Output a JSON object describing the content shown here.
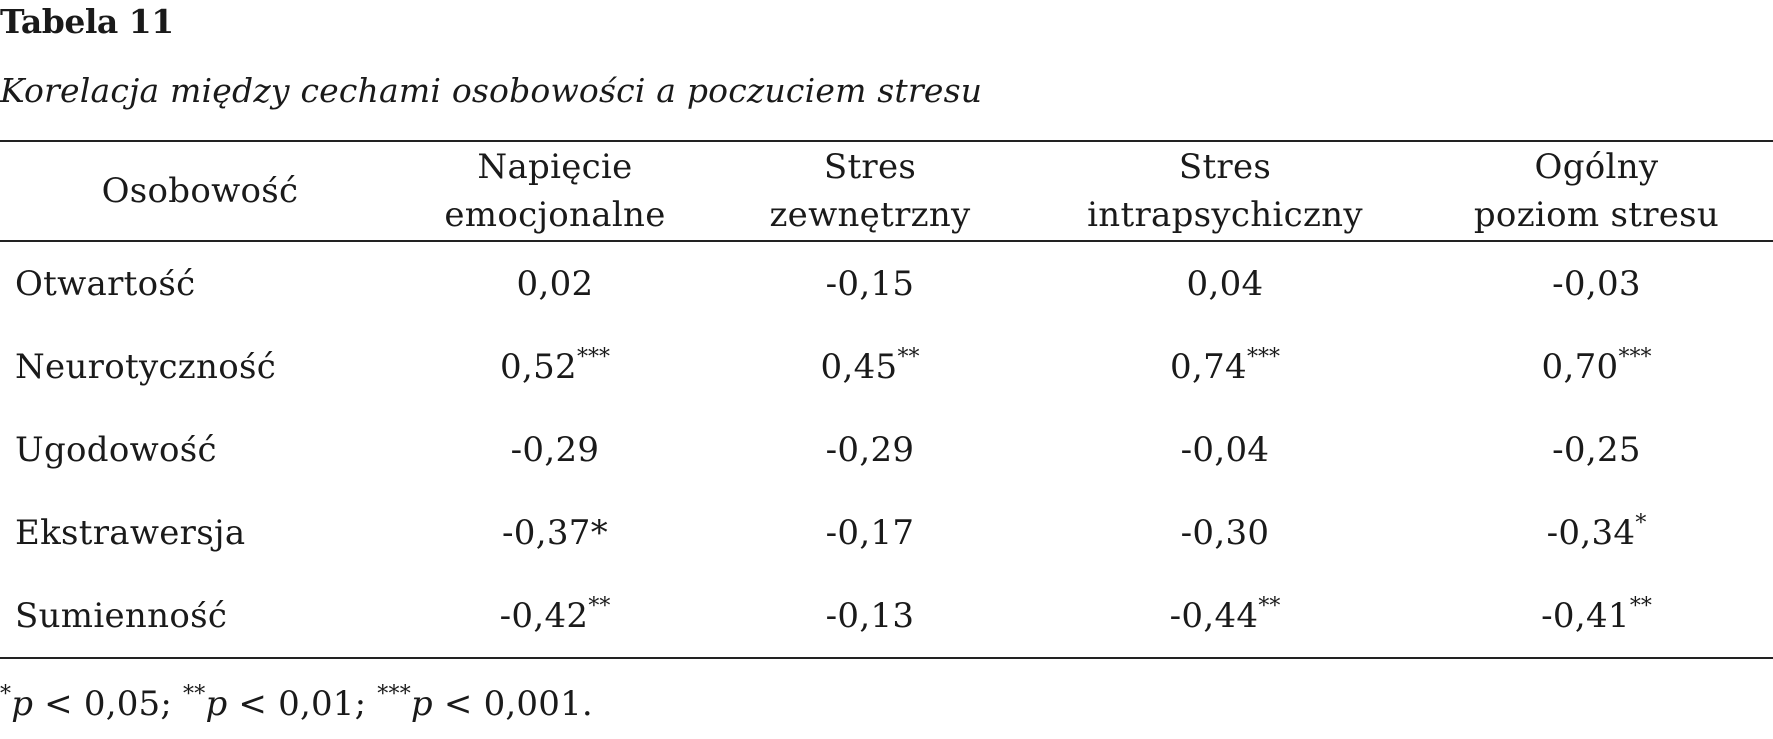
{
  "table": {
    "label": "Tabela 11",
    "title": "Korelacja między cechami osobowości a poczuciem stresu",
    "headers": [
      {
        "line1": "Osobowość",
        "line2": ""
      },
      {
        "line1": "Napięcie",
        "line2": "emocjonalne"
      },
      {
        "line1": "Stres",
        "line2": "zewnętrzny"
      },
      {
        "line1": "Stres",
        "line2": "intrapsychiczny"
      },
      {
        "line1": "Ogólny",
        "line2": "poziom stresu"
      }
    ],
    "rows": [
      {
        "label": "Otwartość",
        "cells": [
          {
            "value": "0,02",
            "sig": ""
          },
          {
            "value": "-0,15",
            "sig": ""
          },
          {
            "value": "0,04",
            "sig": ""
          },
          {
            "value": "-0,03",
            "sig": ""
          }
        ]
      },
      {
        "label": "Neurotyczność",
        "cells": [
          {
            "value": "0,52",
            "sig": "***"
          },
          {
            "value": "0,45",
            "sig": "**"
          },
          {
            "value": "0,74",
            "sig": "***"
          },
          {
            "value": "0,70",
            "sig": "***"
          }
        ]
      },
      {
        "label": "Ugodowość",
        "cells": [
          {
            "value": "-0,29",
            "sig": ""
          },
          {
            "value": "-0,29",
            "sig": ""
          },
          {
            "value": "-0,04",
            "sig": ""
          },
          {
            "value": "-0,25",
            "sig": ""
          }
        ]
      },
      {
        "label": "Ekstrawersja",
        "cells": [
          {
            "value": "-0,37*",
            "sig": ""
          },
          {
            "value": "-0,17",
            "sig": ""
          },
          {
            "value": "-0,30",
            "sig": ""
          },
          {
            "value": "-0,34",
            "sig": "*"
          }
        ]
      },
      {
        "label": "Sumienność",
        "cells": [
          {
            "value": "-0,42",
            "sig": "**"
          },
          {
            "value": "-0,13",
            "sig": ""
          },
          {
            "value": "-0,44",
            "sig": "**"
          },
          {
            "value": "-0,41",
            "sig": "**"
          }
        ]
      }
    ],
    "note": {
      "parts": [
        {
          "sig": "*",
          "p": "p",
          "text": " < 0,05; "
        },
        {
          "sig": "**",
          "p": "p",
          "text": " < 0,01; "
        },
        {
          "sig": "***",
          "p": "p",
          "text": " < 0,001."
        }
      ]
    }
  }
}
